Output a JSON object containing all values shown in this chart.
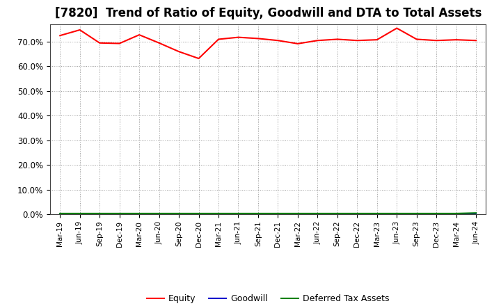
{
  "title": "[7820]  Trend of Ratio of Equity, Goodwill and DTA to Total Assets",
  "labels": [
    "Mar-19",
    "Jun-19",
    "Sep-19",
    "Dec-19",
    "Mar-20",
    "Jun-20",
    "Sep-20",
    "Dec-20",
    "Mar-21",
    "Jun-21",
    "Sep-21",
    "Dec-21",
    "Mar-22",
    "Jun-22",
    "Sep-22",
    "Dec-22",
    "Mar-23",
    "Jun-23",
    "Sep-23",
    "Dec-23",
    "Mar-24",
    "Jun-24"
  ],
  "equity": [
    72.5,
    74.8,
    69.5,
    69.3,
    72.8,
    69.5,
    66.0,
    63.2,
    71.0,
    71.8,
    71.3,
    70.5,
    69.2,
    70.5,
    71.0,
    70.5,
    70.8,
    75.5,
    71.0,
    70.5,
    70.8,
    70.5
  ],
  "goodwill": [
    0.0,
    0.0,
    0.0,
    0.0,
    0.0,
    0.0,
    0.0,
    0.0,
    0.0,
    0.0,
    0.0,
    0.0,
    0.0,
    0.0,
    0.0,
    0.0,
    0.0,
    0.0,
    0.0,
    0.0,
    0.0,
    0.0
  ],
  "dta": [
    0.3,
    0.3,
    0.3,
    0.3,
    0.3,
    0.3,
    0.3,
    0.3,
    0.3,
    0.3,
    0.3,
    0.3,
    0.3,
    0.3,
    0.3,
    0.3,
    0.3,
    0.3,
    0.3,
    0.3,
    0.3,
    0.5
  ],
  "equity_color": "#ff0000",
  "goodwill_color": "#0000cc",
  "dta_color": "#008000",
  "ylim": [
    0,
    77
  ],
  "yticks": [
    0,
    10,
    20,
    30,
    40,
    50,
    60,
    70
  ],
  "ytick_labels": [
    "0.0%",
    "10.0%",
    "20.0%",
    "30.0%",
    "40.0%",
    "50.0%",
    "60.0%",
    "70.0%"
  ],
  "background_color": "#ffffff",
  "grid_color": "#999999",
  "title_fontsize": 12,
  "title_fontweight": "bold",
  "legend_labels": [
    "Equity",
    "Goodwill",
    "Deferred Tax Assets"
  ]
}
